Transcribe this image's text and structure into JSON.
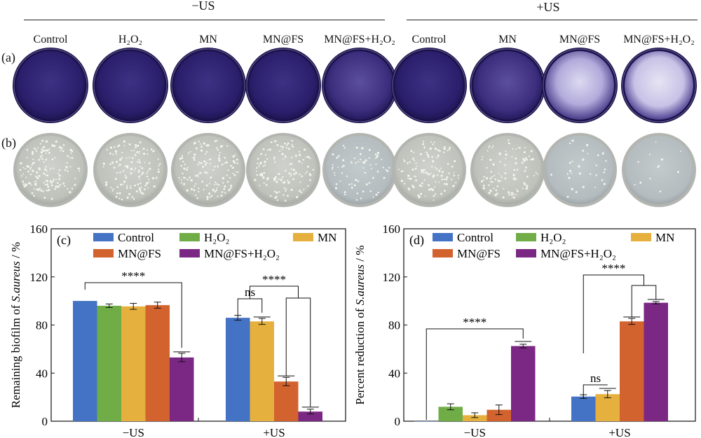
{
  "header": {
    "minus_us": "−US",
    "plus_us": "+US"
  },
  "row_labels": {
    "a": "(a)",
    "b": "(b)"
  },
  "dish_labels": [
    {
      "label": "Control"
    },
    {
      "label": "H₂O₂"
    },
    {
      "label": "MN"
    },
    {
      "label": "MN@FS"
    },
    {
      "label": "MN@FS+H₂O₂"
    },
    {
      "label": "Control"
    },
    {
      "label": "MN"
    },
    {
      "label": "MN@FS"
    },
    {
      "label": "MN@FS+H₂O₂"
    }
  ],
  "colors": {
    "control": "#4472c4",
    "h2o2": "#70ad47",
    "mn": "#e5b03d",
    "mnfs": "#d2622e",
    "mnfsh2o2": "#7b2784",
    "stain_dark": "#2a1f6e",
    "stain_light": "#c7c3ea",
    "agar": "#c8c9c4"
  },
  "chart_data": [
    {
      "type": "bar",
      "panel": "(c)",
      "ylabel": "Remaining biofilm of S.aureus / %",
      "ylim": [
        0,
        160
      ],
      "yticks": [
        "0",
        "40",
        "80",
        "120",
        "160"
      ],
      "categories": [
        "−US",
        "+US"
      ],
      "legend": [
        "Control",
        "H₂O₂",
        "MN",
        "MN@FS",
        "MN@FS+H₂O₂"
      ],
      "groups": [
        {
          "category": "−US",
          "bars": [
            {
              "series": "Control",
              "value": 100,
              "error": 0
            },
            {
              "series": "H₂O₂",
              "value": 96,
              "error": 1.5
            },
            {
              "series": "MN",
              "value": 95.5,
              "error": 2.5
            },
            {
              "series": "MN@FS",
              "value": 96.5,
              "error": 2.5
            },
            {
              "series": "MN@FS+H₂O₂",
              "value": 53,
              "error": 3.5
            }
          ]
        },
        {
          "category": "+US",
          "bars": [
            {
              "series": "Control",
              "value": 86,
              "error": 2
            },
            {
              "series": "MN",
              "value": 83,
              "error": 2.5
            },
            {
              "series": "MN@FS",
              "value": 33,
              "error": 3.5
            },
            {
              "series": "MN@FS+H₂O₂",
              "value": 8,
              "error": 2
            }
          ]
        }
      ],
      "annotations": [
        "****",
        "ns",
        "****"
      ]
    },
    {
      "type": "bar",
      "panel": "(d)",
      "ylabel": "Percent reduction of S.aureus / %",
      "ylim": [
        0,
        160
      ],
      "yticks": [
        "0",
        "40",
        "80",
        "120",
        "160"
      ],
      "categories": [
        "−US",
        "+US"
      ],
      "legend": [
        "Control",
        "H₂O₂",
        "MN",
        "MN@FS",
        "MN@FS+H₂O₂"
      ],
      "groups": [
        {
          "category": "−US",
          "bars": [
            {
              "series": "Control",
              "value": 0,
              "error": 0
            },
            {
              "series": "H₂O₂",
              "value": 12,
              "error": 2.5
            },
            {
              "series": "MN",
              "value": 5,
              "error": 2
            },
            {
              "series": "MN@FS",
              "value": 9.5,
              "error": 4
            },
            {
              "series": "MN@FS+H₂O₂",
              "value": 62.5,
              "error": 1.5
            }
          ]
        },
        {
          "category": "+US",
          "bars": [
            {
              "series": "Control",
              "value": 20.5,
              "error": 1.5
            },
            {
              "series": "MN",
              "value": 22.5,
              "error": 3
            },
            {
              "series": "MN@FS",
              "value": 83,
              "error": 2.5
            },
            {
              "series": "MN@FS+H₂O₂",
              "value": 98.5,
              "error": 1
            }
          ]
        }
      ],
      "annotations": [
        "****",
        "ns",
        "****"
      ]
    }
  ]
}
